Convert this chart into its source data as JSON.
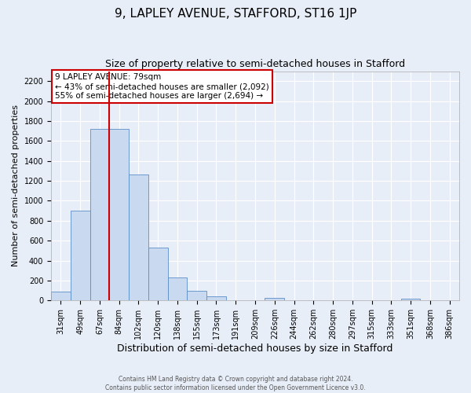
{
  "title": "9, LAPLEY AVENUE, STAFFORD, ST16 1JP",
  "subtitle": "Size of property relative to semi-detached houses in Stafford",
  "xlabel": "Distribution of semi-detached houses by size in Stafford",
  "ylabel": "Number of semi-detached properties",
  "categories": [
    "31sqm",
    "49sqm",
    "67sqm",
    "84sqm",
    "102sqm",
    "120sqm",
    "138sqm",
    "155sqm",
    "173sqm",
    "191sqm",
    "209sqm",
    "226sqm",
    "244sqm",
    "262sqm",
    "280sqm",
    "297sqm",
    "315sqm",
    "333sqm",
    "351sqm",
    "368sqm",
    "386sqm"
  ],
  "values": [
    90,
    900,
    1720,
    1720,
    1260,
    530,
    230,
    100,
    40,
    0,
    0,
    25,
    0,
    0,
    0,
    0,
    0,
    0,
    20,
    0,
    0
  ],
  "bar_color": "#c9d9f0",
  "bar_edge_color": "#5b8dc8",
  "vline_color": "#cc0000",
  "annotation_title": "9 LAPLEY AVENUE: 79sqm",
  "annotation_line1": "← 43% of semi-detached houses are smaller (2,092)",
  "annotation_line2": "55% of semi-detached houses are larger (2,694) →",
  "annotation_box_color": "#cc0000",
  "ylim": [
    0,
    2300
  ],
  "yticks": [
    0,
    200,
    400,
    600,
    800,
    1000,
    1200,
    1400,
    1600,
    1800,
    2000,
    2200
  ],
  "background_color": "#e8eef8",
  "plot_background_color": "#e8eef8",
  "footer_line1": "Contains HM Land Registry data © Crown copyright and database right 2024.",
  "footer_line2": "Contains public sector information licensed under the Open Government Licence v3.0.",
  "title_fontsize": 11,
  "subtitle_fontsize": 9,
  "xlabel_fontsize": 9,
  "ylabel_fontsize": 8,
  "tick_fontsize": 7,
  "annotation_fontsize": 7.5,
  "footer_fontsize": 5.5
}
